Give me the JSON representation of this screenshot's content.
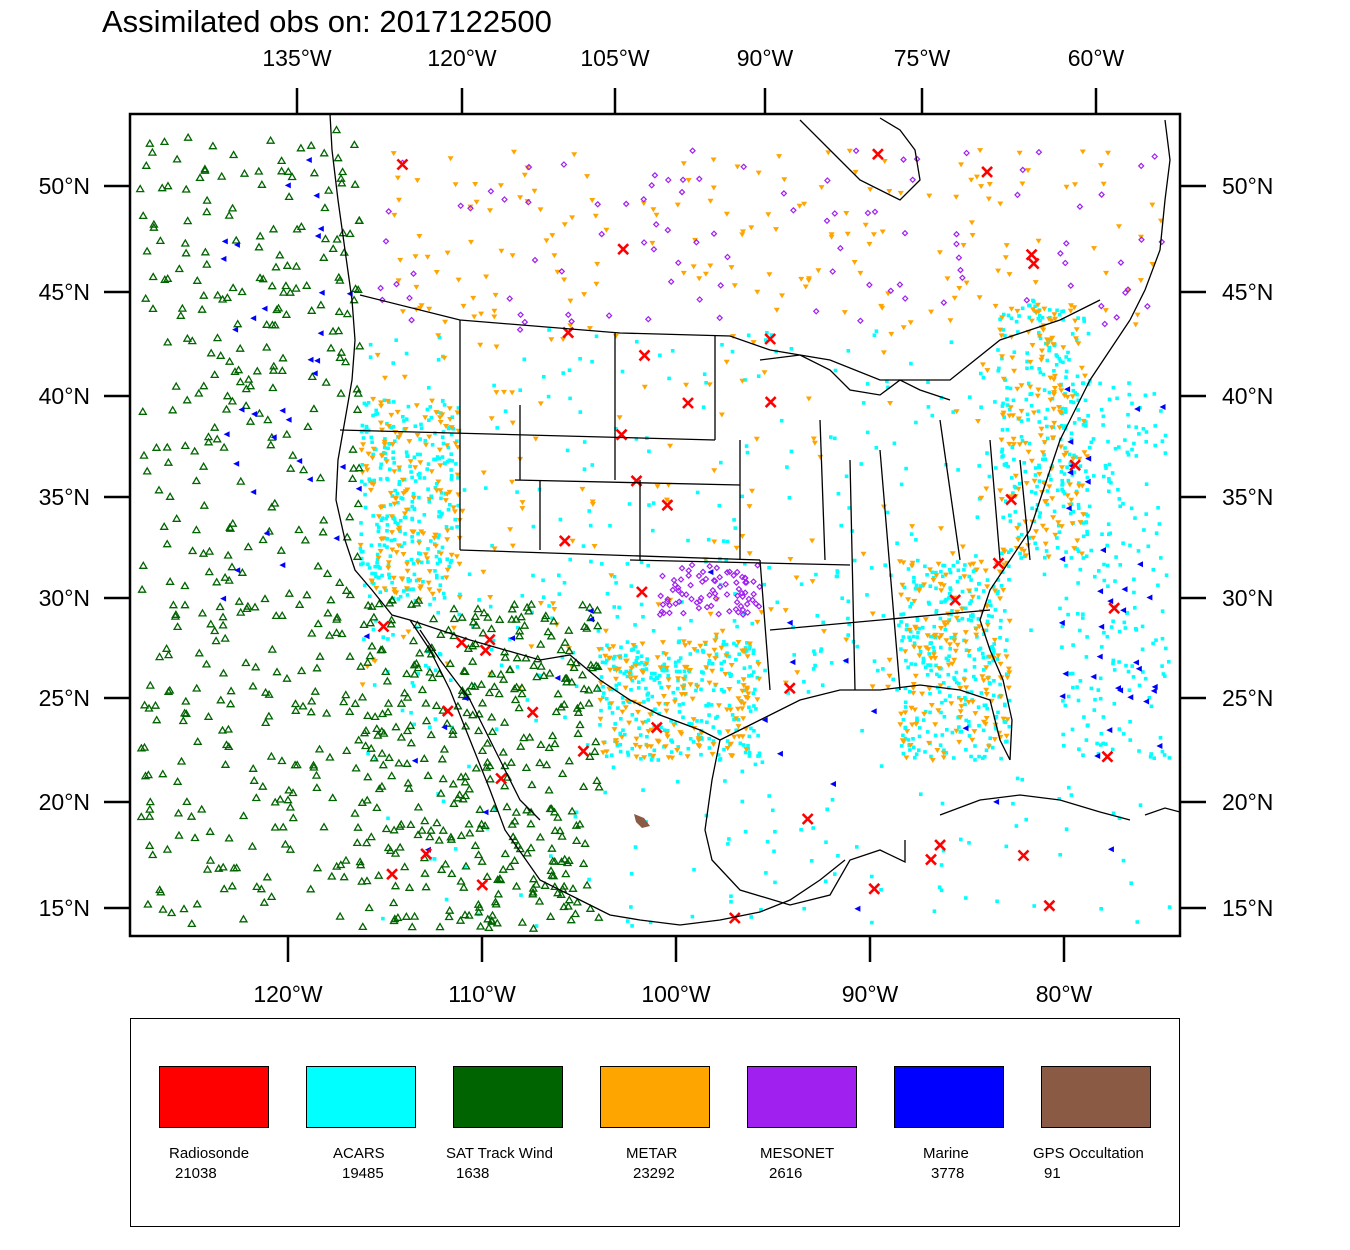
{
  "title": "Assimilated obs on: 2017122500",
  "map": {
    "top_lon_labels": [
      "135°W",
      "120°W",
      "105°W",
      "90°W",
      "75°W",
      "60°W"
    ],
    "bottom_lon_labels": [
      "120°W",
      "110°W",
      "100°W",
      "90°W",
      "80°W"
    ],
    "lat_labels": [
      "50°N",
      "45°N",
      "40°N",
      "35°N",
      "30°N",
      "25°N",
      "20°N",
      "15°N"
    ]
  },
  "legend": [
    {
      "id": "radiosonde",
      "name": "Radiosonde",
      "count": "21038",
      "color": "#ff0000"
    },
    {
      "id": "acars",
      "name": "ACARS",
      "count": "19485",
      "color": "#00ffff"
    },
    {
      "id": "sat-track-wind",
      "name": "SAT Track Wind",
      "count": "1638",
      "color": "#006400"
    },
    {
      "id": "metar",
      "name": "METAR",
      "count": "23292",
      "color": "#ffa500"
    },
    {
      "id": "mesonet",
      "name": "MESONET",
      "count": "2616",
      "color": "#a020f0"
    },
    {
      "id": "marine",
      "name": "Marine",
      "count": "3778",
      "color": "#0000ff"
    },
    {
      "id": "gps-occultation",
      "name": "GPS Occultation",
      "count": "91",
      "color": "#8b5a45"
    }
  ]
}
